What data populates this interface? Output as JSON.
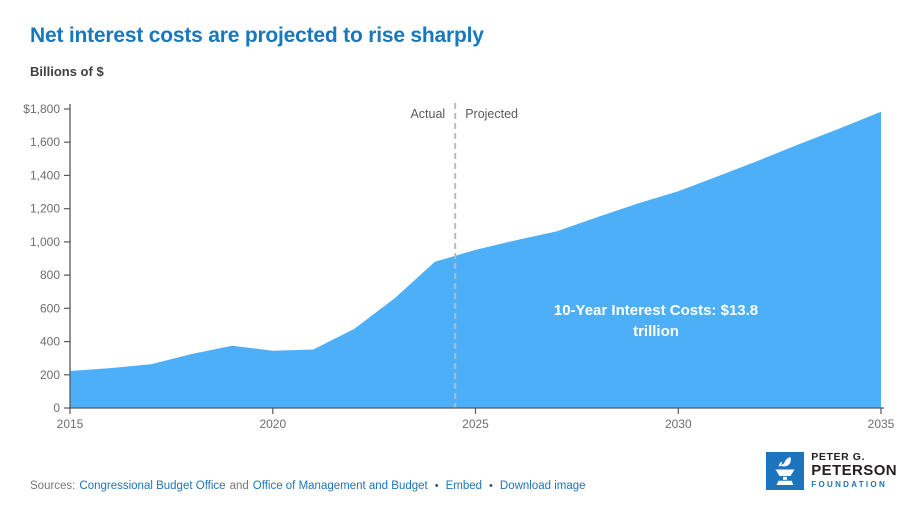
{
  "header": {
    "title": "Net interest costs are projected to rise sharply",
    "units_label": "Billions of $"
  },
  "chart_data": {
    "type": "area",
    "title": "Net interest costs are projected to rise sharply",
    "xlabel": "",
    "ylabel": "Billions of $",
    "x": [
      2015,
      2016,
      2017,
      2018,
      2019,
      2020,
      2021,
      2022,
      2023,
      2024,
      2025,
      2026,
      2027,
      2028,
      2029,
      2030,
      2031,
      2032,
      2033,
      2034,
      2035
    ],
    "values": [
      223,
      240,
      263,
      325,
      375,
      345,
      352,
      475,
      659,
      881,
      952,
      1010,
      1063,
      1148,
      1231,
      1305,
      1397,
      1492,
      1590,
      1685,
      1784
    ],
    "series_name": "Net interest costs (billions of $)",
    "xlim": [
      2015,
      2035
    ],
    "ylim": [
      0,
      1800
    ],
    "ytick_values": [
      0,
      200,
      400,
      600,
      800,
      1000,
      1200,
      1400,
      1600,
      1800
    ],
    "ytick_labels": [
      "0",
      "200",
      "400",
      "600",
      "800",
      "1,000",
      "1,200",
      "1,400",
      "1,600",
      "$1,800"
    ],
    "xtick_values": [
      2015,
      2020,
      2025,
      2030,
      2035
    ],
    "xtick_labels": [
      "2015",
      "2020",
      "2025",
      "2030",
      "2035"
    ],
    "grid": false,
    "legend": false,
    "divider_x": 2024.5,
    "divider_left_label": "Actual",
    "divider_right_label": "Projected",
    "annotation": {
      "full_text": "10-Year Interest Costs: $13.8 trillion",
      "line1": "10-Year Interest Costs: $13.8",
      "line2": "trillion"
    },
    "area_color": "#4DAFF8",
    "axis_color": "#58595B",
    "divider_color": "#B9BABB"
  },
  "footer": {
    "sources_prefix": "Sources:",
    "source_links": [
      "Congressional Budget Office",
      "Office of Management and Budget"
    ],
    "and_text": "and",
    "separator": "•",
    "embed_label": "Embed",
    "download_label": "Download image"
  },
  "logo": {
    "line1": "PETER G.",
    "line2": "PETERSON",
    "line3": "FOUNDATION"
  },
  "colors": {
    "title_blue": "#1878BD",
    "link_blue": "#1B75BC",
    "area_blue": "#4DAFF8",
    "logo_blue": "#1C75BC"
  }
}
